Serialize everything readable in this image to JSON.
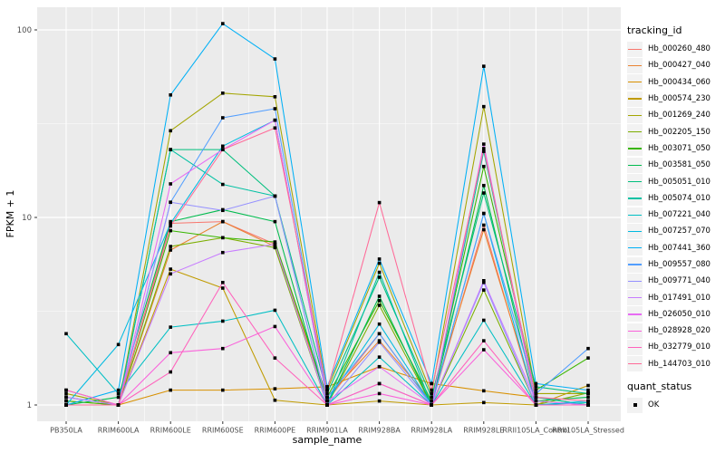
{
  "figure": {
    "background": "#FFFFFF",
    "panel_bg": "#EBEBEB",
    "grid_color": "#FFFFFF",
    "tick_color": "#333333",
    "tick_label_color": "#4D4D4D",
    "axis_title_color": "#000000",
    "point_color": "#000000",
    "legend_key_bg": "#F2F2F2"
  },
  "axes": {
    "x_title": "sample_name",
    "y_title": "FPKM + 1",
    "y_tick_labels": [
      "1",
      "10",
      "100"
    ]
  },
  "legend": {
    "tracking_title": "tracking_id",
    "quant_title": "quant_status",
    "quant_items": [
      {
        "label": "OK",
        "marker": "black-square"
      }
    ]
  },
  "chart_data": {
    "type": "line",
    "x_type": "categorical",
    "y_scale": "log10",
    "ylim": [
      1,
      120
    ],
    "y_breaks": [
      1,
      10,
      100
    ],
    "y_minor_breaks": [
      3.1623,
      31.623
    ],
    "grid": true,
    "legend_position": "right",
    "marker": "small-black-square",
    "title": "",
    "xlabel": "sample_name",
    "ylabel": "FPKM + 1",
    "categories": [
      "PB350LA",
      "RRIM600LA",
      "RRIM600LE",
      "RRIM600SE",
      "RRIM600PE",
      "RRIM901LA",
      "RRIM928BA",
      "RRIM928LA",
      "RRIM928LE",
      "RRII105LA_Control",
      "RRII105LA_Stressed"
    ],
    "series": [
      {
        "name": "Hb_000260_480",
        "color": "#F8766D",
        "values": [
          1.0,
          1.0,
          9.3,
          9.5,
          7.2,
          1.05,
          2.4,
          1.0,
          9.1,
          1.0,
          1.0
        ]
      },
      {
        "name": "Hb_000427_040",
        "color": "#EA8331",
        "values": [
          1.0,
          1.0,
          6.7,
          9.5,
          7.0,
          1.1,
          2.2,
          1.05,
          8.6,
          1.05,
          1.0
        ]
      },
      {
        "name": "Hb_000434_060",
        "color": "#D89000",
        "values": [
          1.05,
          1.0,
          1.2,
          1.2,
          1.22,
          1.25,
          1.6,
          1.3,
          1.19,
          1.1,
          1.0
        ]
      },
      {
        "name": "Hb_000574_230",
        "color": "#C09B00",
        "values": [
          1.2,
          1.0,
          5.3,
          4.2,
          1.06,
          1.0,
          1.05,
          1.0,
          1.03,
          1.0,
          1.27
        ]
      },
      {
        "name": "Hb_001269_240",
        "color": "#A3A500",
        "values": [
          1.15,
          1.0,
          29.0,
          46.0,
          44.0,
          1.2,
          5.7,
          1.15,
          39.0,
          1.15,
          1.15
        ]
      },
      {
        "name": "Hb_002205_150",
        "color": "#7CAE00",
        "values": [
          1.0,
          1.0,
          7.0,
          7.8,
          6.9,
          1.0,
          3.4,
          1.0,
          4.1,
          1.0,
          1.16
        ]
      },
      {
        "name": "Hb_003071_050",
        "color": "#39B600",
        "values": [
          1.05,
          1.0,
          8.5,
          7.8,
          7.4,
          1.1,
          3.6,
          1.05,
          18.7,
          1.2,
          1.78
        ]
      },
      {
        "name": "Hb_003581_050",
        "color": "#00BB4E",
        "values": [
          1.0,
          1.1,
          9.5,
          11.0,
          9.5,
          1.0,
          3.8,
          1.0,
          14.8,
          1.05,
          1.1
        ]
      },
      {
        "name": "Hb_005051_010",
        "color": "#00BF7D",
        "values": [
          1.1,
          1.0,
          23.0,
          23.0,
          13.0,
          1.15,
          4.8,
          1.1,
          13.5,
          1.25,
          1.15
        ]
      },
      {
        "name": "Hb_005074_010",
        "color": "#00C1A3",
        "values": [
          1.0,
          1.0,
          23.0,
          15.0,
          13.0,
          1.0,
          5.1,
          1.0,
          22.5,
          1.1,
          1.0
        ]
      },
      {
        "name": "Hb_007221_040",
        "color": "#00BFC4",
        "values": [
          2.4,
          1.15,
          2.6,
          2.8,
          3.2,
          1.0,
          1.8,
          1.0,
          2.83,
          1.0,
          1.03
        ]
      },
      {
        "name": "Hb_007257_070",
        "color": "#00BAE0",
        "values": [
          1.0,
          2.1,
          9.3,
          24.0,
          33.0,
          1.05,
          2.7,
          1.0,
          10.5,
          1.0,
          1.05
        ]
      },
      {
        "name": "Hb_007441_360",
        "color": "#00B0F6",
        "values": [
          1.0,
          1.2,
          45.0,
          108.0,
          70.0,
          1.25,
          6.0,
          1.3,
          64.0,
          1.3,
          1.2
        ]
      },
      {
        "name": "Hb_009557_080",
        "color": "#529EFF",
        "values": [
          1.0,
          1.0,
          12.05,
          34.0,
          38.0,
          1.1,
          2.4,
          1.0,
          10.5,
          1.15,
          2.0
        ]
      },
      {
        "name": "Hb_009771_040",
        "color": "#9590FF",
        "values": [
          1.0,
          1.0,
          12.05,
          10.9,
          13.0,
          1.0,
          2.16,
          1.0,
          4.5,
          1.0,
          1.0
        ]
      },
      {
        "name": "Hb_017491_010",
        "color": "#C77CFF",
        "values": [
          1.1,
          1.0,
          5.0,
          6.5,
          7.2,
          1.0,
          1.3,
          1.0,
          4.6,
          1.05,
          1.0
        ]
      },
      {
        "name": "Hb_026050_010",
        "color": "#E76BF3",
        "values": [
          1.0,
          1.0,
          15.1,
          23.0,
          33.0,
          1.05,
          1.6,
          1.0,
          24.6,
          1.0,
          1.0
        ]
      },
      {
        "name": "Hb_028928_020",
        "color": "#FA62DB",
        "values": [
          1.2,
          1.0,
          1.9,
          2.0,
          2.62,
          1.0,
          1.15,
          1.0,
          1.97,
          1.0,
          1.0
        ]
      },
      {
        "name": "Hb_032779_010",
        "color": "#FF62BC",
        "values": [
          1.0,
          1.0,
          1.5,
          4.5,
          1.78,
          1.0,
          1.3,
          1.0,
          2.2,
          1.0,
          1.0
        ]
      },
      {
        "name": "Hb_144703_010",
        "color": "#FF6A98",
        "values": [
          1.0,
          1.0,
          9.0,
          23.0,
          30.0,
          1.2,
          12.0,
          1.2,
          23.3,
          1.1,
          1.05
        ]
      }
    ]
  }
}
